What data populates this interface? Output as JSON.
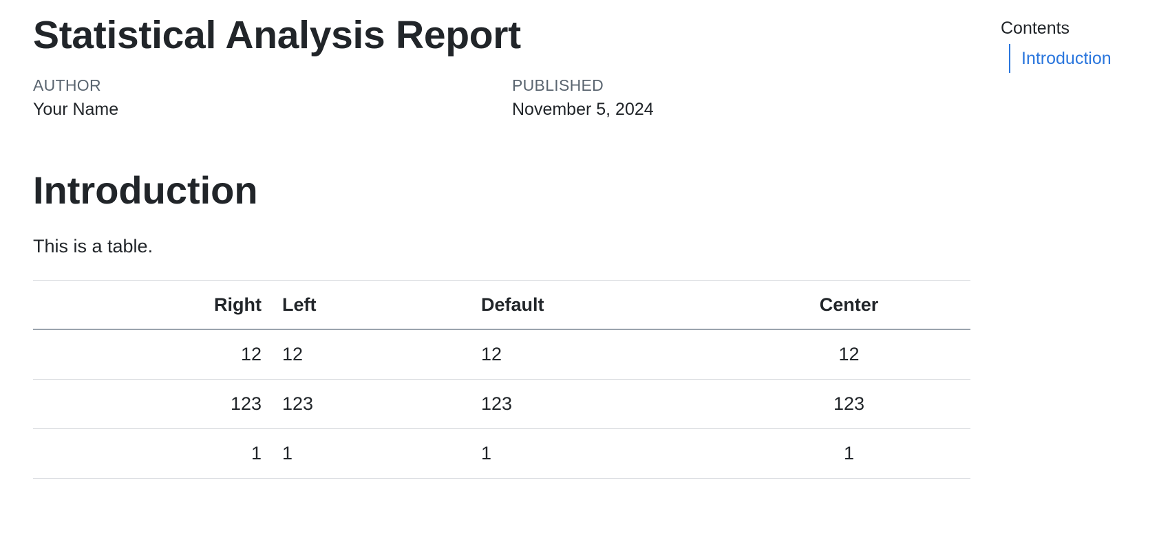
{
  "document": {
    "title": "Statistical Analysis Report",
    "author_label": "AUTHOR",
    "author_value": "Your Name",
    "published_label": "PUBLISHED",
    "published_value": "November 5, 2024",
    "section_heading": "Introduction",
    "intro_text": "This is a table."
  },
  "table": {
    "headers": [
      "Right",
      "Left",
      "Default",
      "Center"
    ],
    "rows": [
      [
        "12",
        "12",
        "12",
        "12"
      ],
      [
        "123",
        "123",
        "123",
        "123"
      ],
      [
        "1",
        "1",
        "1",
        "1"
      ]
    ]
  },
  "toc": {
    "title": "Contents",
    "items": [
      {
        "label": "Introduction"
      }
    ],
    "accent_color": "#2a76dd"
  }
}
